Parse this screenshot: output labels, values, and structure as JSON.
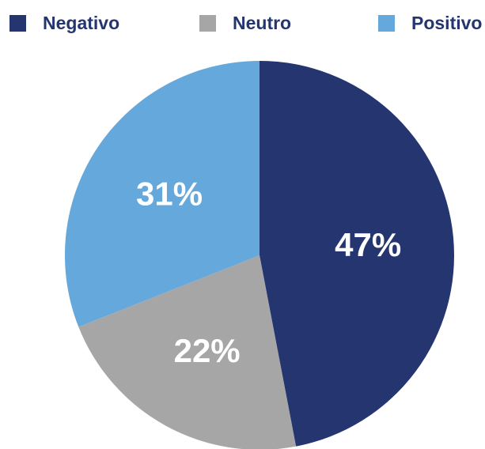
{
  "chart_data": {
    "type": "pie",
    "categories": [
      "Negativo",
      "Neutro",
      "Positivo"
    ],
    "values": [
      47,
      22,
      31
    ],
    "value_labels": [
      "47%",
      "22%",
      "31%"
    ],
    "colors": [
      "#243570",
      "#a6a6a6",
      "#65a8dc"
    ],
    "legend": "top"
  }
}
